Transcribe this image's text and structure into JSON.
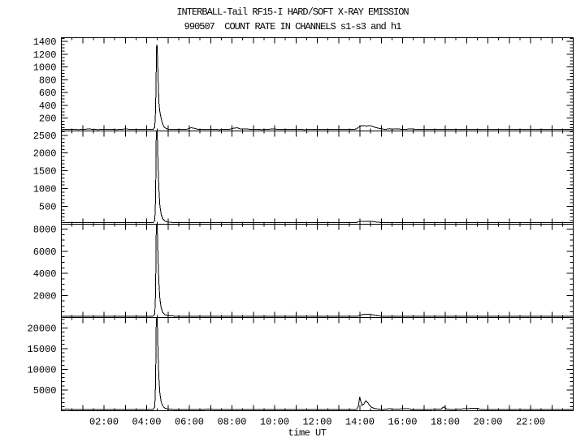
{
  "title": "INTERBALL-Tail RF15-I HARD/SOFT X-RAY EMISSION",
  "subtitle": "990507  COUNT RATE IN CHANNELS s1-s3 and h1",
  "xlabel": "time UT",
  "colors": {
    "foreground": "#000000",
    "background": "#ffffff"
  },
  "chart_data": {
    "type": "line",
    "title": "INTERBALL-Tail RF15-I HARD/SOFT X-RAY EMISSION",
    "subtitle": "990507  COUNT RATE IN CHANNELS s1-s3 and h1",
    "xlabel": "time UT",
    "x_unit": "hours UT",
    "xlim": [
      0,
      24
    ],
    "x_major_tick_hours": 1,
    "x_minor_tick_hours": 0.5,
    "grid": false,
    "legend": "none",
    "x_tick_labels": [
      {
        "hour": 2,
        "label": "02:00"
      },
      {
        "hour": 4,
        "label": "04:00"
      },
      {
        "hour": 6,
        "label": "06:00"
      },
      {
        "hour": 8,
        "label": "08:00"
      },
      {
        "hour": 10,
        "label": "10:00"
      },
      {
        "hour": 12,
        "label": "12:00"
      },
      {
        "hour": 14,
        "label": "14:00"
      },
      {
        "hour": 16,
        "label": "16:00"
      },
      {
        "hour": 18,
        "label": "18:00"
      },
      {
        "hour": 20,
        "label": "20:00"
      },
      {
        "hour": 22,
        "label": "22:00"
      }
    ],
    "panels": [
      {
        "channel": "s1",
        "ylim": [
          0,
          1460
        ],
        "ytick_major": 200,
        "ytick_minor": 50,
        "ytick_labels": [
          "200",
          "400",
          "600",
          "800",
          "1000",
          "1200",
          "1400"
        ],
        "main_flare_peak_ut": "04:28",
        "points": [
          [
            0,
            22
          ],
          [
            0.4,
            28
          ],
          [
            0.8,
            22
          ],
          [
            1.3,
            30
          ],
          [
            1.7,
            22
          ],
          [
            2.2,
            28
          ],
          [
            2.6,
            22
          ],
          [
            3.0,
            30
          ],
          [
            3.4,
            24
          ],
          [
            3.8,
            28
          ],
          [
            4.1,
            24
          ],
          [
            4.3,
            26
          ],
          [
            4.38,
            60
          ],
          [
            4.42,
            320
          ],
          [
            4.45,
            950
          ],
          [
            4.47,
            1350
          ],
          [
            4.49,
            1330
          ],
          [
            4.52,
            1060
          ],
          [
            4.55,
            690
          ],
          [
            4.58,
            430
          ],
          [
            4.62,
            300
          ],
          [
            4.66,
            230
          ],
          [
            4.72,
            140
          ],
          [
            4.8,
            70
          ],
          [
            4.9,
            40
          ],
          [
            5.0,
            28
          ],
          [
            5.4,
            24
          ],
          [
            5.9,
            28
          ],
          [
            6.0,
            45
          ],
          [
            6.1,
            50
          ],
          [
            6.25,
            40
          ],
          [
            6.4,
            26
          ],
          [
            6.9,
            28
          ],
          [
            7.4,
            22
          ],
          [
            7.9,
            28
          ],
          [
            8.1,
            45
          ],
          [
            8.25,
            50
          ],
          [
            8.4,
            30
          ],
          [
            8.9,
            28
          ],
          [
            9.4,
            22
          ],
          [
            9.9,
            30
          ],
          [
            10.4,
            24
          ],
          [
            10.9,
            28
          ],
          [
            11.4,
            22
          ],
          [
            11.9,
            28
          ],
          [
            12.4,
            24
          ],
          [
            12.9,
            28
          ],
          [
            13.4,
            24
          ],
          [
            13.75,
            26
          ],
          [
            13.85,
            35
          ],
          [
            13.95,
            62
          ],
          [
            14.05,
            80
          ],
          [
            14.15,
            85
          ],
          [
            14.3,
            78
          ],
          [
            14.45,
            85
          ],
          [
            14.6,
            72
          ],
          [
            14.75,
            52
          ],
          [
            14.9,
            40
          ],
          [
            15.05,
            30
          ],
          [
            15.2,
            26
          ],
          [
            15.4,
            36
          ],
          [
            15.55,
            28
          ],
          [
            15.75,
            34
          ],
          [
            15.95,
            26
          ],
          [
            16.4,
            30
          ],
          [
            16.9,
            24
          ],
          [
            17.4,
            28
          ],
          [
            17.9,
            24
          ],
          [
            18.4,
            28
          ],
          [
            18.9,
            24
          ],
          [
            19.4,
            28
          ],
          [
            19.9,
            24
          ],
          [
            20.4,
            28
          ],
          [
            20.9,
            24
          ],
          [
            21.4,
            28
          ],
          [
            21.9,
            24
          ],
          [
            22.4,
            28
          ],
          [
            22.9,
            24
          ],
          [
            23.4,
            28
          ],
          [
            24,
            24
          ]
        ]
      },
      {
        "channel": "s2",
        "ylim": [
          0,
          2620
        ],
        "ytick_major": 500,
        "ytick_minor": 100,
        "ytick_labels": [
          "500",
          "1000",
          "1500",
          "2000",
          "2500"
        ],
        "main_flare_peak_ut": "04:28",
        "points": [
          [
            0,
            40
          ],
          [
            0.5,
            50
          ],
          [
            1.0,
            40
          ],
          [
            1.5,
            50
          ],
          [
            2.0,
            42
          ],
          [
            2.5,
            50
          ],
          [
            3.0,
            42
          ],
          [
            3.5,
            50
          ],
          [
            4.0,
            44
          ],
          [
            4.3,
            46
          ],
          [
            4.38,
            100
          ],
          [
            4.42,
            700
          ],
          [
            4.45,
            2450
          ],
          [
            4.47,
            2700
          ],
          [
            4.5,
            2520
          ],
          [
            4.53,
            1750
          ],
          [
            4.57,
            1020
          ],
          [
            4.62,
            520
          ],
          [
            4.68,
            290
          ],
          [
            4.75,
            160
          ],
          [
            4.85,
            90
          ],
          [
            5.0,
            55
          ],
          [
            5.5,
            44
          ],
          [
            6.0,
            50
          ],
          [
            6.5,
            42
          ],
          [
            7.0,
            50
          ],
          [
            7.5,
            42
          ],
          [
            8.0,
            50
          ],
          [
            8.5,
            44
          ],
          [
            9.0,
            50
          ],
          [
            9.5,
            42
          ],
          [
            10.0,
            50
          ],
          [
            10.5,
            44
          ],
          [
            11.0,
            50
          ],
          [
            11.5,
            42
          ],
          [
            12.0,
            50
          ],
          [
            12.5,
            44
          ],
          [
            13.0,
            50
          ],
          [
            13.5,
            44
          ],
          [
            13.85,
            50
          ],
          [
            13.95,
            75
          ],
          [
            14.1,
            85
          ],
          [
            14.3,
            80
          ],
          [
            14.5,
            85
          ],
          [
            14.65,
            70
          ],
          [
            14.8,
            58
          ],
          [
            15.0,
            48
          ],
          [
            15.2,
            44
          ],
          [
            15.7,
            50
          ],
          [
            16.2,
            44
          ],
          [
            16.7,
            50
          ],
          [
            17.2,
            44
          ],
          [
            17.7,
            50
          ],
          [
            18.2,
            44
          ],
          [
            18.7,
            50
          ],
          [
            19.2,
            44
          ],
          [
            19.7,
            50
          ],
          [
            20.2,
            44
          ],
          [
            20.7,
            50
          ],
          [
            21.2,
            44
          ],
          [
            21.7,
            50
          ],
          [
            22.2,
            44
          ],
          [
            22.7,
            50
          ],
          [
            23.2,
            44
          ],
          [
            23.7,
            50
          ],
          [
            24,
            46
          ]
        ]
      },
      {
        "channel": "s3",
        "ylim": [
          0,
          8450
        ],
        "ytick_major": 2000,
        "ytick_minor": 500,
        "ytick_labels": [
          "2000",
          "4000",
          "6000",
          "8000"
        ],
        "main_flare_peak_ut": "04:28",
        "points": [
          [
            0,
            100
          ],
          [
            0.5,
            120
          ],
          [
            1.0,
            100
          ],
          [
            1.5,
            120
          ],
          [
            2.0,
            105
          ],
          [
            2.5,
            120
          ],
          [
            3.0,
            105
          ],
          [
            3.5,
            120
          ],
          [
            4.0,
            108
          ],
          [
            4.3,
            115
          ],
          [
            4.38,
            300
          ],
          [
            4.42,
            2200
          ],
          [
            4.45,
            7800
          ],
          [
            4.47,
            8700
          ],
          [
            4.5,
            8100
          ],
          [
            4.53,
            5600
          ],
          [
            4.57,
            3300
          ],
          [
            4.62,
            1700
          ],
          [
            4.68,
            900
          ],
          [
            4.75,
            480
          ],
          [
            4.85,
            260
          ],
          [
            5.0,
            150
          ],
          [
            5.5,
            108
          ],
          [
            6.0,
            120
          ],
          [
            6.5,
            105
          ],
          [
            7.0,
            120
          ],
          [
            7.5,
            105
          ],
          [
            8.0,
            120
          ],
          [
            8.5,
            108
          ],
          [
            9.0,
            120
          ],
          [
            9.5,
            105
          ],
          [
            10.0,
            120
          ],
          [
            10.5,
            108
          ],
          [
            11.0,
            120
          ],
          [
            11.5,
            105
          ],
          [
            12.0,
            120
          ],
          [
            12.5,
            108
          ],
          [
            13.0,
            120
          ],
          [
            13.5,
            108
          ],
          [
            13.9,
            115
          ],
          [
            14.0,
            180
          ],
          [
            14.15,
            280
          ],
          [
            14.3,
            300
          ],
          [
            14.5,
            280
          ],
          [
            14.65,
            220
          ],
          [
            14.8,
            160
          ],
          [
            15.0,
            120
          ],
          [
            15.5,
            108
          ],
          [
            16.0,
            120
          ],
          [
            16.5,
            105
          ],
          [
            17.0,
            120
          ],
          [
            17.5,
            105
          ],
          [
            18.0,
            120
          ],
          [
            18.5,
            108
          ],
          [
            19.0,
            120
          ],
          [
            19.5,
            105
          ],
          [
            20.0,
            120
          ],
          [
            20.5,
            108
          ],
          [
            21.0,
            120
          ],
          [
            21.5,
            105
          ],
          [
            22.0,
            120
          ],
          [
            22.5,
            108
          ],
          [
            23.0,
            120
          ],
          [
            23.5,
            108
          ],
          [
            24,
            112
          ]
        ]
      },
      {
        "channel": "h1",
        "ylim": [
          0,
          22500
        ],
        "ytick_major": 5000,
        "ytick_minor": 1000,
        "ytick_labels": [
          "5000",
          "10000",
          "15000",
          "20000"
        ],
        "main_flare_peak_ut": "04:28",
        "points": [
          [
            0,
            260
          ],
          [
            0.3,
            420
          ],
          [
            0.45,
            280
          ],
          [
            1.0,
            260
          ],
          [
            1.5,
            320
          ],
          [
            2.0,
            270
          ],
          [
            2.5,
            320
          ],
          [
            3.0,
            270
          ],
          [
            3.5,
            320
          ],
          [
            4.0,
            280
          ],
          [
            4.3,
            300
          ],
          [
            4.38,
            900
          ],
          [
            4.42,
            6500
          ],
          [
            4.45,
            21000
          ],
          [
            4.47,
            23500
          ],
          [
            4.5,
            21500
          ],
          [
            4.53,
            14500
          ],
          [
            4.57,
            8200
          ],
          [
            4.62,
            4200
          ],
          [
            4.68,
            2200
          ],
          [
            4.75,
            1200
          ],
          [
            4.85,
            640
          ],
          [
            5.0,
            380
          ],
          [
            5.5,
            290
          ],
          [
            6.0,
            320
          ],
          [
            6.5,
            270
          ],
          [
            7.0,
            420
          ],
          [
            7.15,
            300
          ],
          [
            7.5,
            270
          ],
          [
            8.0,
            320
          ],
          [
            8.5,
            280
          ],
          [
            9.0,
            320
          ],
          [
            9.5,
            270
          ],
          [
            10.0,
            320
          ],
          [
            10.5,
            280
          ],
          [
            11.0,
            320
          ],
          [
            11.5,
            270
          ],
          [
            12.0,
            320
          ],
          [
            12.5,
            280
          ],
          [
            13.0,
            320
          ],
          [
            13.5,
            280
          ],
          [
            13.85,
            320
          ],
          [
            13.93,
            1200
          ],
          [
            13.99,
            3300
          ],
          [
            14.04,
            2300
          ],
          [
            14.1,
            1300
          ],
          [
            14.18,
            1600
          ],
          [
            14.28,
            2400
          ],
          [
            14.36,
            2000
          ],
          [
            14.45,
            1300
          ],
          [
            14.55,
            800
          ],
          [
            14.7,
            520
          ],
          [
            14.9,
            380
          ],
          [
            15.1,
            320
          ],
          [
            15.4,
            500
          ],
          [
            15.55,
            360
          ],
          [
            16.25,
            520
          ],
          [
            16.4,
            340
          ],
          [
            17.0,
            300
          ],
          [
            17.8,
            400
          ],
          [
            17.88,
            800
          ],
          [
            17.97,
            880
          ],
          [
            18.05,
            420
          ],
          [
            18.3,
            300
          ],
          [
            19.45,
            620
          ],
          [
            19.55,
            520
          ],
          [
            19.65,
            320
          ],
          [
            20.0,
            300
          ],
          [
            20.5,
            320
          ],
          [
            21.0,
            280
          ],
          [
            21.5,
            320
          ],
          [
            22.0,
            280
          ],
          [
            22.5,
            320
          ],
          [
            23.0,
            280
          ],
          [
            23.5,
            320
          ],
          [
            24,
            290
          ]
        ]
      }
    ],
    "layout_hints": {
      "panels_stacked": 4,
      "shared_x_axis": true,
      "frame": "box with inward ticks on all sides",
      "line_color": "#000000"
    }
  }
}
